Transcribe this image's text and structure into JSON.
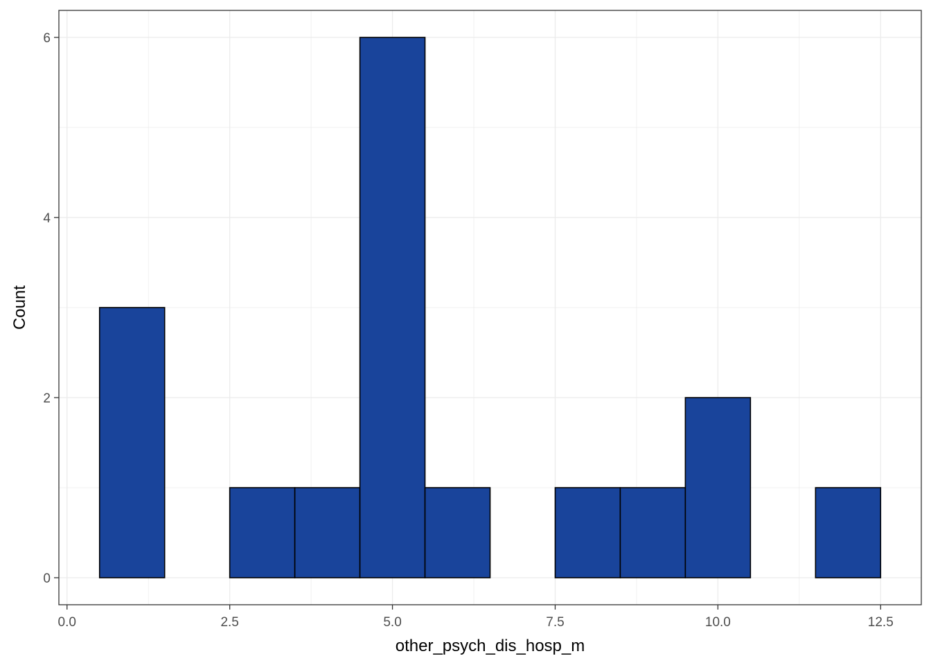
{
  "chart_data": {
    "type": "bar",
    "subtype": "histogram",
    "title": "",
    "xlabel": "other_psych_dis_hosp_m",
    "ylabel": "Count",
    "bin_width": 1,
    "bins": [
      {
        "x_start": 0.5,
        "x_end": 1.5,
        "count": 3
      },
      {
        "x_start": 1.5,
        "x_end": 2.5,
        "count": 0
      },
      {
        "x_start": 2.5,
        "x_end": 3.5,
        "count": 1
      },
      {
        "x_start": 3.5,
        "x_end": 4.5,
        "count": 1
      },
      {
        "x_start": 4.5,
        "x_end": 5.5,
        "count": 6
      },
      {
        "x_start": 5.5,
        "x_end": 6.5,
        "count": 1
      },
      {
        "x_start": 6.5,
        "x_end": 7.5,
        "count": 0
      },
      {
        "x_start": 7.5,
        "x_end": 8.5,
        "count": 1
      },
      {
        "x_start": 8.5,
        "x_end": 9.5,
        "count": 1
      },
      {
        "x_start": 9.5,
        "x_end": 10.5,
        "count": 2
      },
      {
        "x_start": 10.5,
        "x_end": 11.5,
        "count": 0
      },
      {
        "x_start": 11.5,
        "x_end": 12.5,
        "count": 1
      }
    ],
    "xlim": [
      -0.125,
      13.125
    ],
    "ylim": [
      -0.3,
      6.3
    ],
    "x_ticks": [
      0,
      2.5,
      5,
      7.5,
      10,
      12.5
    ],
    "x_tick_labels": [
      "0.0",
      "2.5",
      "5.0",
      "7.5",
      "10.0",
      "12.5"
    ],
    "y_ticks": [
      0,
      2,
      4,
      6
    ],
    "y_tick_labels": [
      "0",
      "2",
      "4",
      "6"
    ],
    "grid": true,
    "legend": "none",
    "colors": {
      "bar_fill": "#19449b",
      "bar_outline": "#000000",
      "grid": "#ebebeb",
      "panel_border": "#333333",
      "tick_text": "#4d4d4d",
      "axis_title": "#000000"
    }
  }
}
